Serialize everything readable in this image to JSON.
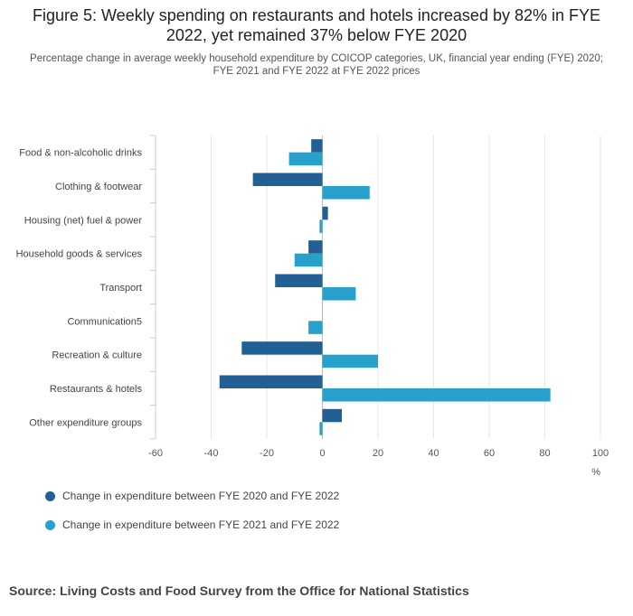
{
  "chart_data": {
    "type": "bar",
    "orientation": "horizontal",
    "title": "Figure 5: Weekly spending on restaurants and hotels increased by 82% in FYE 2022, yet remained 37% below FYE 2020",
    "subtitle": "Percentage change in average weekly household expenditure by COICOP categories, UK, financial year ending (FYE) 2020; FYE 2021 and FYE 2022 at FYE 2022 prices",
    "categories": [
      "Food & non-alcoholic drinks",
      "Clothing & footwear",
      "Housing (net) fuel & power",
      "Household goods & services",
      "Transport",
      "Communication5",
      "Recreation & culture",
      "Restaurants & hotels",
      "Other expenditure groups"
    ],
    "series": [
      {
        "name": "Change in expenditure between FYE 2020 and FYE 2022",
        "color": "#206095",
        "values": [
          -4,
          -25,
          2,
          -5,
          -17,
          0,
          -29,
          -37,
          7
        ]
      },
      {
        "name": "Change in expenditure between FYE 2021 and FYE 2022",
        "color": "#27a0cc",
        "values": [
          -12,
          17,
          -1,
          -10,
          12,
          -5,
          20,
          82,
          -1
        ]
      }
    ],
    "xlim": [
      -60,
      100
    ],
    "xticks": [
      "-60",
      "-40",
      "-20",
      "0",
      "20",
      "40",
      "60",
      "80",
      "100"
    ],
    "xlabel": "%",
    "grid": true,
    "legend_position": "bottom-left"
  },
  "source": "Source: Living Costs and Food Survey from the Office for National Statistics"
}
